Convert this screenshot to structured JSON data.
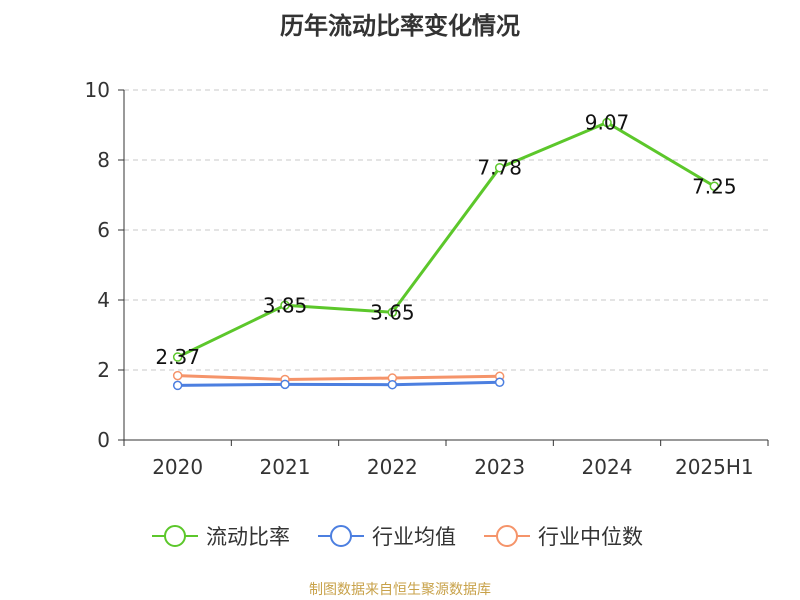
{
  "chart_data": {
    "type": "line",
    "title": "历年流动比率变化情况",
    "categories": [
      "2020",
      "2021",
      "2022",
      "2023",
      "2024",
      "2025H1"
    ],
    "ylim": [
      0,
      10
    ],
    "yticks": [
      "0",
      "2",
      "4",
      "6",
      "8",
      "10"
    ],
    "grid": true,
    "legend_position": "bottom",
    "series": [
      {
        "name": "流动比率",
        "color": "#5cc72b",
        "values": [
          2.37,
          3.85,
          3.65,
          7.78,
          9.07,
          7.25
        ],
        "labels": [
          "2.37",
          "3.85",
          "3.65",
          "7.78",
          "9.07",
          "7.25"
        ]
      },
      {
        "name": "行业均值",
        "color": "#4c7fe0",
        "values": [
          1.56,
          1.59,
          1.58,
          1.65,
          null,
          null
        ]
      },
      {
        "name": "行业中位数",
        "color": "#f5946a",
        "values": [
          1.84,
          1.73,
          1.77,
          1.82,
          null,
          null
        ]
      }
    ]
  },
  "source": "制图数据来自恒生聚源数据库"
}
